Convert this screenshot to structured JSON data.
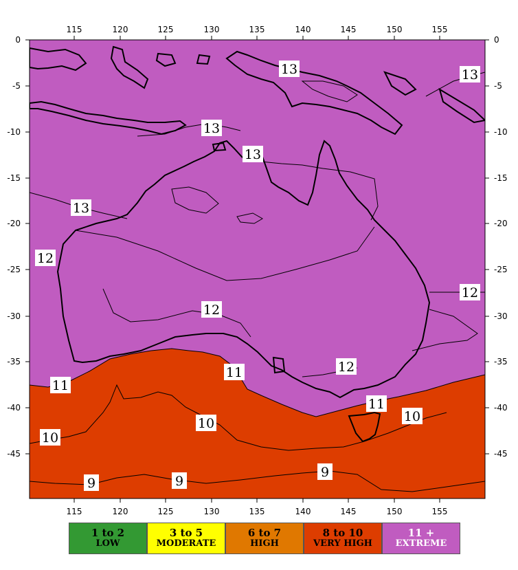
{
  "axes": {
    "x_ticks": [
      "115",
      "120",
      "125",
      "130",
      "135",
      "140",
      "145",
      "150",
      "155"
    ],
    "y_ticks": [
      "0",
      "-5",
      "-10",
      "-15",
      "-20",
      "-25",
      "-30",
      "-35",
      "-40",
      "-45"
    ]
  },
  "contours": [
    {
      "value": 13,
      "text": "13"
    },
    {
      "value": 13,
      "text": "13"
    },
    {
      "value": 13,
      "text": "13"
    },
    {
      "value": 13,
      "text": "13"
    },
    {
      "value": 13,
      "text": "13"
    },
    {
      "value": 12,
      "text": "12"
    },
    {
      "value": 12,
      "text": "12"
    },
    {
      "value": 12,
      "text": "12"
    },
    {
      "value": 12,
      "text": "12"
    },
    {
      "value": 11,
      "text": "11"
    },
    {
      "value": 11,
      "text": "11"
    },
    {
      "value": 11,
      "text": "11"
    },
    {
      "value": 10,
      "text": "10"
    },
    {
      "value": 10,
      "text": "10"
    },
    {
      "value": 10,
      "text": "10"
    },
    {
      "value": 9,
      "text": "9"
    },
    {
      "value": 9,
      "text": "9"
    },
    {
      "value": 9,
      "text": "9"
    }
  ],
  "colors": {
    "extreme": "#c05cc0",
    "very_high": "#dd3d00",
    "high": "#e07800",
    "moderate": "#ffff00",
    "low": "#339933",
    "line": "#000000"
  },
  "legend": [
    {
      "range": "1 to 2",
      "category": "LOW",
      "color": "#339933",
      "text_color": "#000000"
    },
    {
      "range": "3 to 5",
      "category": "MODERATE",
      "color": "#ffff00",
      "text_color": "#000000"
    },
    {
      "range": "6 to 7",
      "category": "HIGH",
      "color": "#e07800",
      "text_color": "#000000"
    },
    {
      "range": "8 to 10",
      "category": "VERY HIGH",
      "color": "#dd3d00",
      "text_color": "#000000"
    },
    {
      "range": "11 +",
      "category": "EXTREME",
      "color": "#c05cc0",
      "text_color": "#ffffff"
    }
  ]
}
